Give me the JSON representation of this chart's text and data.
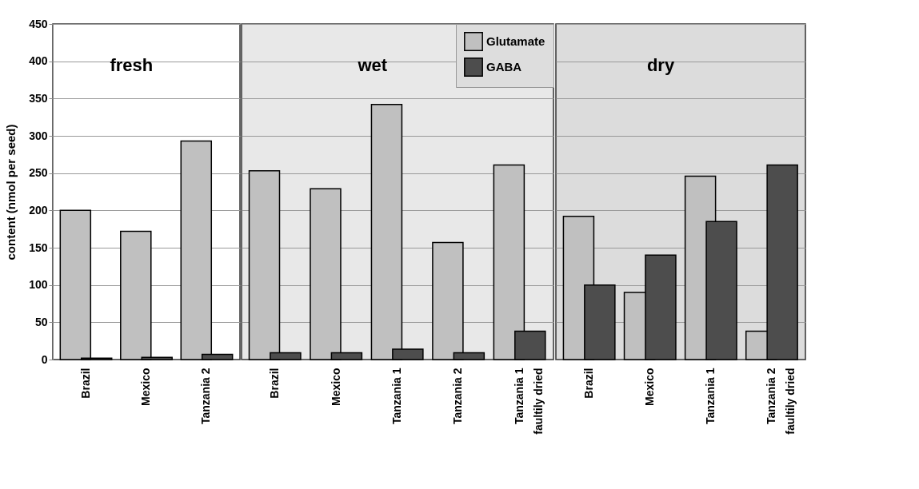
{
  "chart_data": [
    {
      "type": "bar",
      "title": "fresh",
      "ylabel": "content (nmol per seed)",
      "categories": [
        "Brazil",
        "Mexico",
        "Tanzania 2"
      ],
      "series": [
        {
          "color": "#c0c0c0",
          "values": [
            200,
            172,
            293
          ]
        },
        {
          "color": "#4d4d4d",
          "values": [
            2,
            3,
            7
          ]
        }
      ],
      "ylim": [
        0,
        450
      ],
      "yticks": [
        0,
        50,
        100,
        150,
        200,
        250,
        300,
        350,
        400,
        450
      ],
      "grid": "y"
    },
    {
      "type": "bar",
      "title": "wet",
      "categories": [
        "Brazil",
        "Mexico",
        "Tanzania 1",
        "Tanzania 2",
        "Tanzania 1\nfaultily  dried"
      ],
      "series": [
        {
          "name": "Glutamate",
          "color": "#c0c0c0",
          "values": [
            253,
            229,
            342,
            157,
            261
          ]
        },
        {
          "name": "GABA",
          "color": "#4d4d4d",
          "values": [
            9,
            9,
            14,
            9,
            38
          ]
        }
      ],
      "ylim": [
        0,
        450
      ],
      "yticks": [
        0,
        50,
        100,
        150,
        200,
        250,
        300,
        350,
        400,
        450
      ],
      "grid": "y",
      "legend": "top right",
      "tick_labels": "x"
    },
    {
      "type": "bar",
      "title": "dry",
      "categories": [
        "Brazil",
        "Mexico",
        "Tanzania 1",
        "Tanzania 2\nfaultily  dried"
      ],
      "series": [
        {
          "color": "#c0c0c0",
          "values": [
            192,
            90,
            246,
            38
          ]
        },
        {
          "color": "#4d4d4d",
          "values": [
            100,
            140,
            185,
            261
          ]
        }
      ],
      "ylim": [
        0,
        450
      ],
      "yticks": [
        0,
        50,
        100,
        150,
        200,
        250,
        300,
        350,
        400,
        450
      ],
      "grid": "y",
      "tick_labels": "x"
    }
  ]
}
